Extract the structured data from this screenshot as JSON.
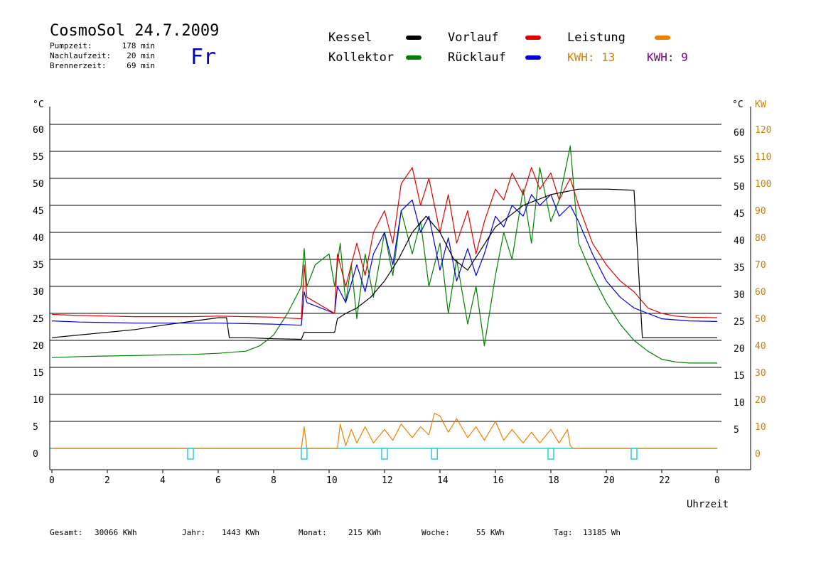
{
  "header": {
    "title": "CosmoSol 24.7.2009",
    "weekday": "Fr",
    "stats": [
      {
        "label": "Pumpzeit:",
        "value": "178 min"
      },
      {
        "label": "Nachlaufzeit:",
        "value": "20 min"
      },
      {
        "label": "Brennerzeit:",
        "value": "69 min"
      }
    ]
  },
  "legend": {
    "items": [
      {
        "label": "Kessel",
        "color": "#000000"
      },
      {
        "label": "Vorlauf",
        "color": "#e00000"
      },
      {
        "label": "Leistung",
        "color": "#f08000"
      },
      {
        "label": "Kollektor",
        "color": "#008000"
      },
      {
        "label": "Rücklauf",
        "color": "#0000e0"
      }
    ],
    "kwh": [
      {
        "label": "KWH: 13",
        "color": "#e08000"
      },
      {
        "label": "KWH: 9",
        "color": "#800080"
      }
    ]
  },
  "footer": {
    "items": [
      {
        "label": "Gesamt:",
        "value": "30066 KWh"
      },
      {
        "label": "Jahr:",
        "value": "1443 KWh"
      },
      {
        "label": "Monat:",
        "value": "215 KWh"
      },
      {
        "label": "Woche:",
        "value": "55 KWh"
      },
      {
        "label": "Tag:",
        "value": "13185 Wh"
      }
    ]
  },
  "chart_data": {
    "type": "line",
    "xlabel": "Uhrzeit",
    "ylabel_left": "°C",
    "ylabel_right_temp": "°C",
    "ylabel_right_power": "KW",
    "x_ticks": [
      "0",
      "2",
      "4",
      "6",
      "8",
      "10",
      "12",
      "14",
      "16",
      "18",
      "20",
      "22",
      "0"
    ],
    "y_ticks_left": [
      0,
      5,
      10,
      15,
      20,
      25,
      30,
      35,
      40,
      45,
      50,
      55,
      60
    ],
    "y_ticks_right_temp": [
      5,
      10,
      15,
      20,
      25,
      30,
      35,
      40,
      45,
      50,
      55,
      60
    ],
    "y_ticks_right_power": [
      0,
      10,
      20,
      30,
      40,
      50,
      60,
      70,
      80,
      90,
      100,
      110,
      120
    ],
    "xlim": [
      0,
      24
    ],
    "ylim": [
      0,
      60
    ],
    "grid": "horizontal",
    "series": [
      {
        "name": "Kessel",
        "color": "#000000",
        "x": [
          0,
          1,
          2,
          3,
          4,
          5,
          6,
          6.3,
          6.4,
          7,
          8,
          9,
          9.1,
          10.2,
          10.3,
          10.6,
          11,
          11.5,
          12,
          12.5,
          13,
          13.5,
          14,
          14.5,
          15,
          15.5,
          16,
          16.5,
          17,
          17.5,
          18,
          18.5,
          19,
          20,
          21,
          21.3,
          21.5,
          22,
          23,
          24
        ],
        "y": [
          20.5,
          21,
          21.5,
          22,
          22.8,
          23.5,
          24.2,
          24.2,
          20.5,
          20.5,
          20.3,
          20.2,
          21.5,
          21.5,
          24,
          25,
          26,
          28,
          31,
          35,
          40,
          43,
          40,
          35,
          33,
          37,
          41,
          43,
          45,
          46,
          47,
          47.5,
          48,
          48,
          47.8,
          20.5,
          20.5,
          20.5,
          20.5,
          20.5
        ]
      },
      {
        "name": "Vorlauf",
        "color": "#e00000",
        "x": [
          0,
          1,
          2,
          3,
          4,
          5,
          6,
          7,
          8,
          9,
          9.1,
          9.2,
          10.2,
          10.3,
          10.6,
          11,
          11.3,
          11.6,
          12,
          12.3,
          12.6,
          13,
          13.3,
          13.6,
          14,
          14.3,
          14.6,
          15,
          15.3,
          15.6,
          16,
          16.3,
          16.6,
          17,
          17.3,
          17.6,
          18,
          18.3,
          18.7,
          19,
          19.5,
          20,
          20.5,
          21,
          21.5,
          22,
          22.5,
          23,
          24
        ],
        "y": [
          24.8,
          24.6,
          24.5,
          24.4,
          24.4,
          24.4,
          24.5,
          24.4,
          24.3,
          24,
          34,
          28,
          25,
          36,
          30,
          38,
          32,
          40,
          44,
          38,
          49,
          52,
          45,
          50,
          40,
          47,
          38,
          44,
          36,
          42,
          48,
          46,
          51,
          47,
          52,
          48,
          51,
          46,
          50,
          45,
          38,
          34,
          31,
          29,
          26,
          25,
          24.5,
          24.3,
          24.2
        ]
      },
      {
        "name": "Rücklauf",
        "color": "#0000e0",
        "x": [
          0,
          1,
          2,
          3,
          4,
          5,
          6,
          7,
          8,
          9,
          9.1,
          9.2,
          10.2,
          10.3,
          10.6,
          11,
          11.3,
          11.6,
          12,
          12.3,
          12.6,
          13,
          13.3,
          13.6,
          14,
          14.3,
          14.6,
          15,
          15.3,
          15.6,
          16,
          16.3,
          16.6,
          17,
          17.3,
          17.6,
          18,
          18.3,
          18.7,
          19,
          19.5,
          20,
          20.5,
          21,
          21.5,
          22,
          22.5,
          23,
          24
        ],
        "y": [
          23.6,
          23.4,
          23.3,
          23.2,
          23.2,
          23.2,
          23.2,
          23.1,
          23.0,
          22.8,
          29,
          27,
          25,
          30,
          27,
          34,
          29,
          36,
          40,
          34,
          44,
          46,
          40,
          43,
          33,
          39,
          31,
          37,
          32,
          36,
          43,
          41,
          45,
          43,
          47,
          45,
          47,
          43,
          45,
          42,
          36,
          31,
          28,
          26,
          25,
          24,
          23.8,
          23.6,
          23.5
        ]
      },
      {
        "name": "Kollektor",
        "color": "#008000",
        "x": [
          0,
          1,
          2,
          3,
          4,
          5,
          6,
          7,
          7.5,
          8,
          8.5,
          9,
          9.1,
          9.2,
          9.5,
          10,
          10.2,
          10.4,
          10.6,
          10.8,
          11,
          11.3,
          11.6,
          12,
          12.3,
          12.6,
          13,
          13.3,
          13.6,
          14,
          14.3,
          14.6,
          15,
          15.3,
          15.6,
          16,
          16.3,
          16.6,
          17,
          17.3,
          17.6,
          18,
          18.3,
          18.7,
          19,
          19.5,
          20,
          20.5,
          21,
          21.5,
          22,
          22.5,
          23,
          24
        ],
        "y": [
          16.8,
          17,
          17.1,
          17.2,
          17.3,
          17.4,
          17.6,
          18,
          19,
          21,
          25,
          30,
          37,
          30,
          34,
          36,
          30,
          38,
          27,
          34,
          24,
          36,
          28,
          40,
          32,
          44,
          36,
          42,
          30,
          38,
          25,
          35,
          23,
          30,
          19,
          32,
          40,
          35,
          48,
          38,
          52,
          42,
          46,
          56,
          38,
          32,
          27,
          23,
          20,
          18,
          16.5,
          16,
          15.8,
          15.8
        ]
      },
      {
        "name": "Leistung",
        "color": "#f08000",
        "x": [
          0,
          8.9,
          9.0,
          9.1,
          9.2,
          10.3,
          10.4,
          10.6,
          10.8,
          11.0,
          11.3,
          11.6,
          12.0,
          12.3,
          12.6,
          13.0,
          13.3,
          13.6,
          13.8,
          14.0,
          14.3,
          14.6,
          15.0,
          15.3,
          15.6,
          16.0,
          16.3,
          16.6,
          17.0,
          17.3,
          17.6,
          18.0,
          18.3,
          18.6,
          18.7,
          18.8,
          24
        ],
        "y": [
          0,
          0,
          0,
          8,
          0,
          0,
          9,
          1,
          7,
          2,
          8,
          2,
          7,
          3,
          9,
          4,
          8,
          5,
          13,
          12,
          6,
          11,
          4,
          8,
          3,
          10,
          3,
          7,
          2,
          6,
          2,
          7,
          2,
          7,
          1,
          0,
          0
        ]
      }
    ],
    "markers_cyan": [
      5,
      9.1,
      12,
      13.8,
      18,
      21
    ]
  }
}
